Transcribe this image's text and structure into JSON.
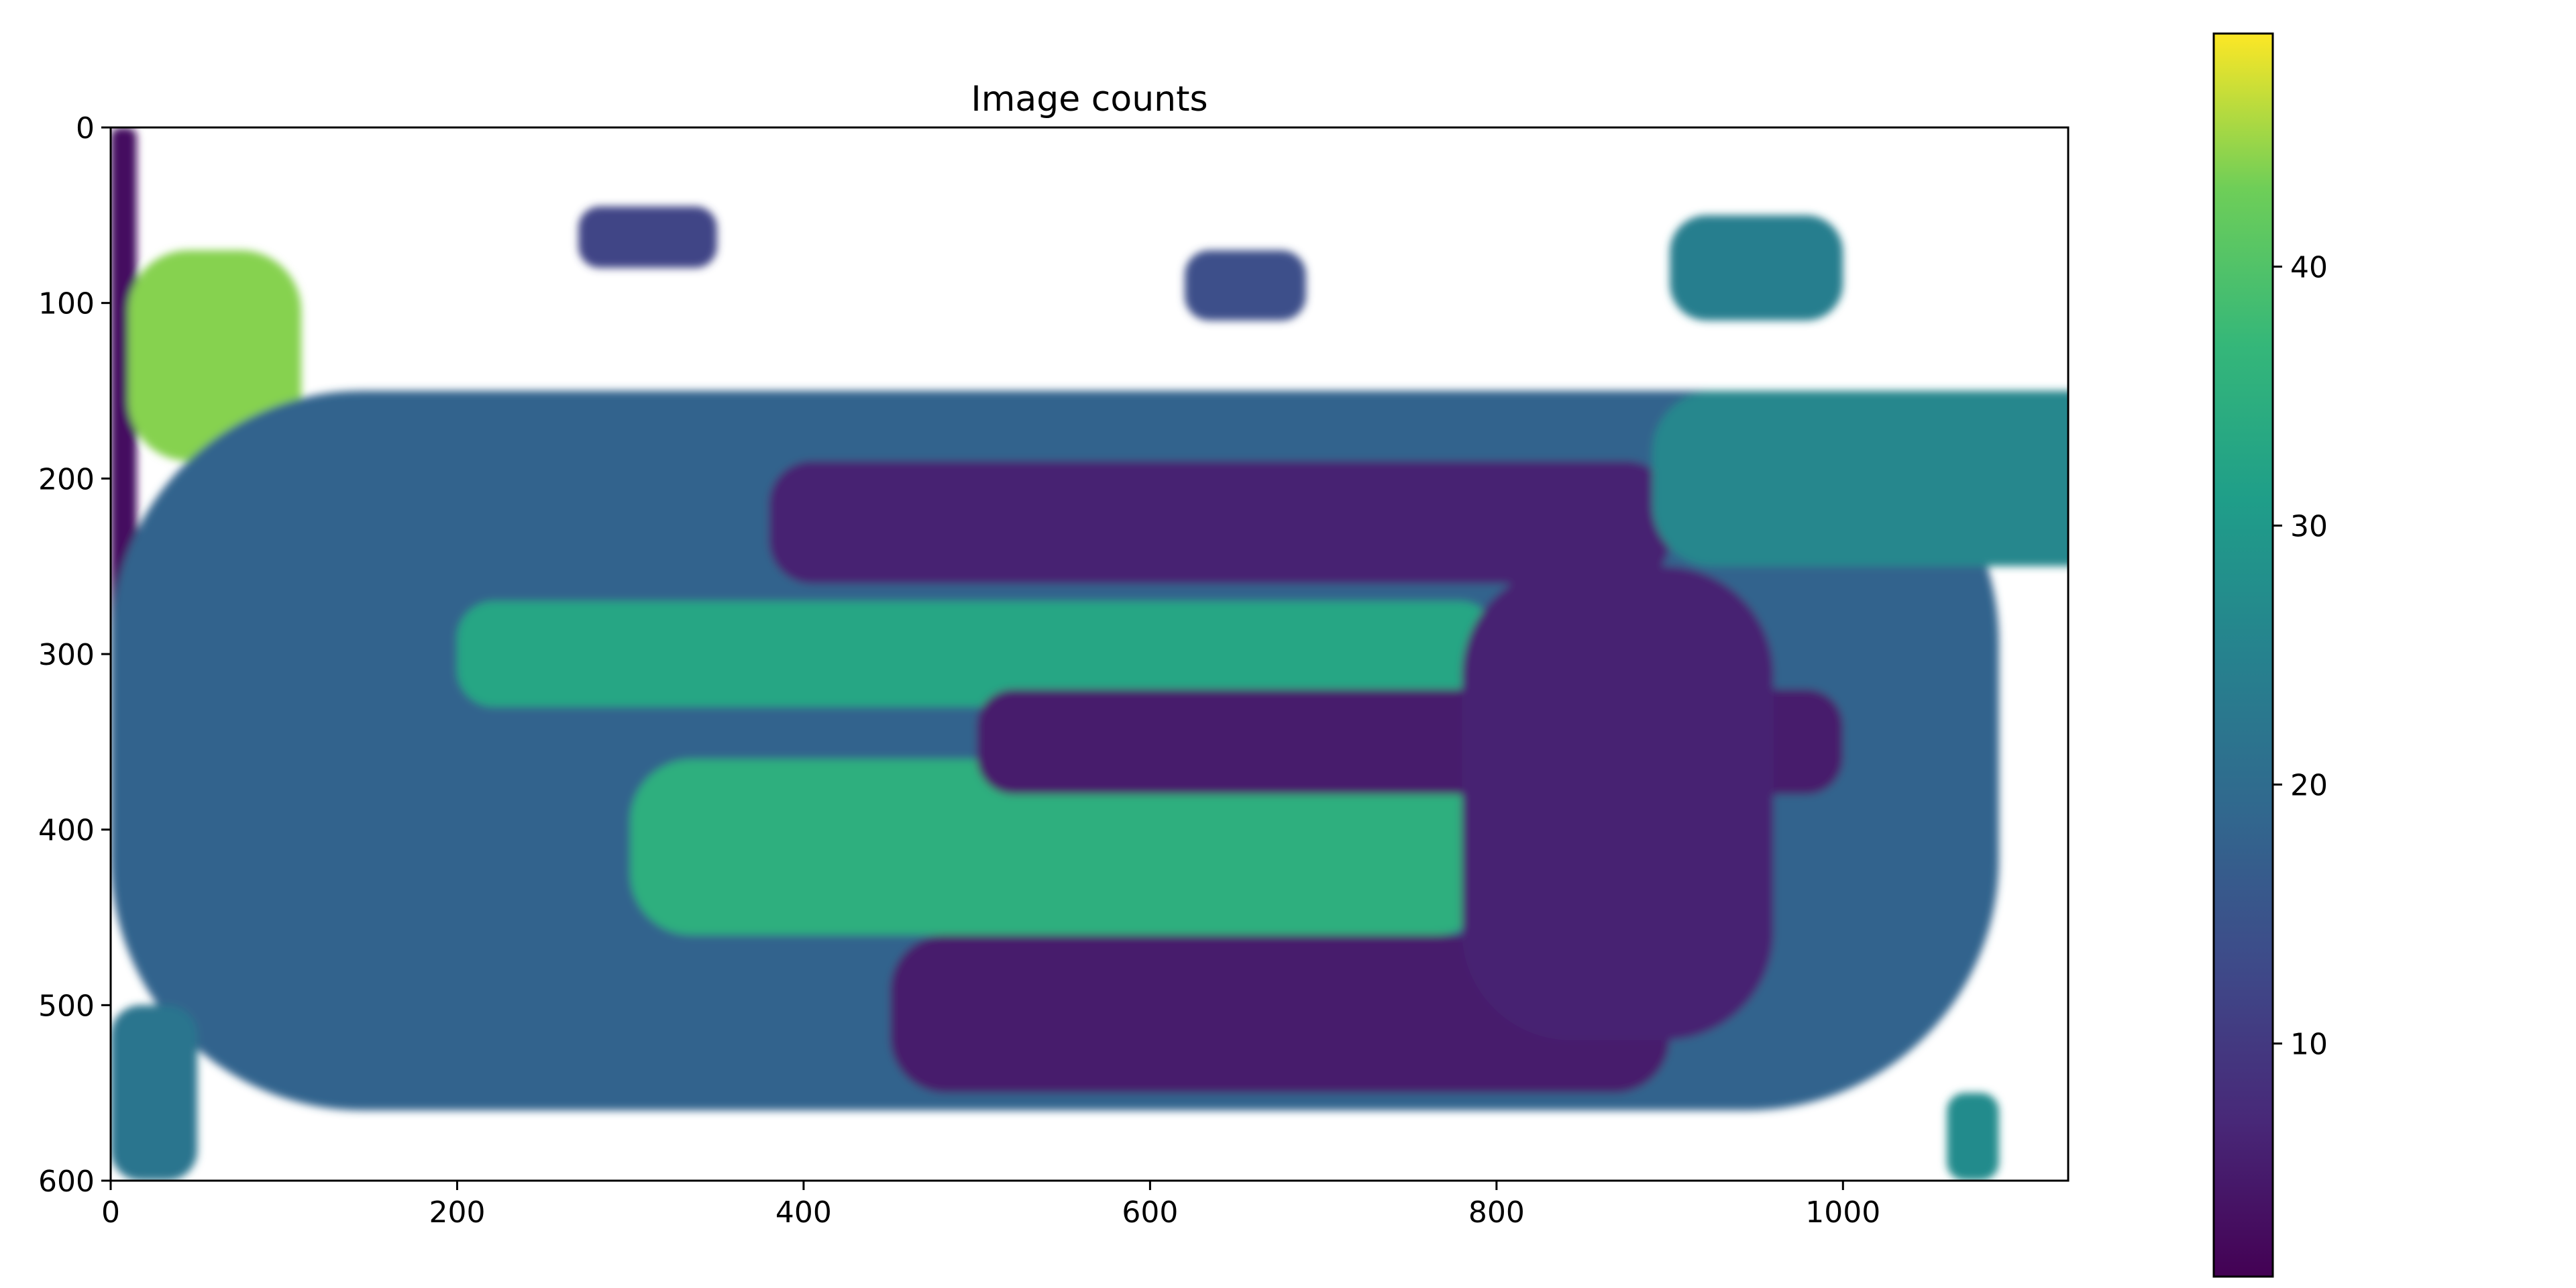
{
  "chart_data": {
    "type": "heatmap",
    "title": "Image counts",
    "xlabel": "",
    "ylabel": "",
    "x_ticks": [
      0,
      200,
      400,
      600,
      800,
      1000
    ],
    "y_ticks": [
      0,
      100,
      200,
      300,
      400,
      500,
      600
    ],
    "xlim": [
      0,
      1130
    ],
    "ylim": [
      600,
      0
    ],
    "y_axis_inverted": true,
    "colormap": "viridis",
    "masked_color": "#ffffff",
    "colorbar": {
      "range": [
        1,
        49
      ],
      "ticks": [
        10,
        20,
        30,
        40
      ]
    },
    "regions": [
      {
        "label": "left-edge strip",
        "x": [
          0,
          15
        ],
        "y": [
          0,
          300
        ],
        "value": 3
      },
      {
        "label": "upper-left bright zone",
        "x": [
          10,
          110
        ],
        "y": [
          70,
          190
        ],
        "value": 44
      },
      {
        "label": "main body envelope",
        "x": [
          0,
          1090
        ],
        "y": [
          150,
          560
        ],
        "value": 18
      },
      {
        "label": "bright band 1",
        "x": [
          200,
          800
        ],
        "y": [
          270,
          330
        ],
        "value": 33
      },
      {
        "label": "bright band 2",
        "x": [
          300,
          800
        ],
        "y": [
          360,
          460
        ],
        "value": 35
      },
      {
        "label": "dark band 1",
        "x": [
          380,
          900
        ],
        "y": [
          190,
          260
        ],
        "value": 6
      },
      {
        "label": "dark band 2",
        "x": [
          500,
          1000
        ],
        "y": [
          320,
          380
        ],
        "value": 5
      },
      {
        "label": "dark band 3",
        "x": [
          450,
          900
        ],
        "y": [
          460,
          550
        ],
        "value": 5
      },
      {
        "label": "dark right lobe",
        "x": [
          780,
          960
        ],
        "y": [
          250,
          520
        ],
        "value": 6
      },
      {
        "label": "upper-right island",
        "x": [
          890,
          1190
        ],
        "y": [
          150,
          250
        ],
        "value": 26
      },
      {
        "label": "small island near top-right",
        "x": [
          900,
          1000
        ],
        "y": [
          50,
          110
        ],
        "value": 24
      },
      {
        "label": "small island near top-center",
        "x": [
          620,
          690
        ],
        "y": [
          70,
          110
        ],
        "value": 14
      },
      {
        "label": "small island near top-left",
        "x": [
          270,
          350
        ],
        "y": [
          45,
          80
        ],
        "value": 12
      },
      {
        "label": "bottom-left corner patch",
        "x": [
          0,
          50
        ],
        "y": [
          500,
          600
        ],
        "value": 22
      },
      {
        "label": "bottom-right island",
        "x": [
          1060,
          1090
        ],
        "y": [
          550,
          600
        ],
        "value": 27
      }
    ]
  }
}
